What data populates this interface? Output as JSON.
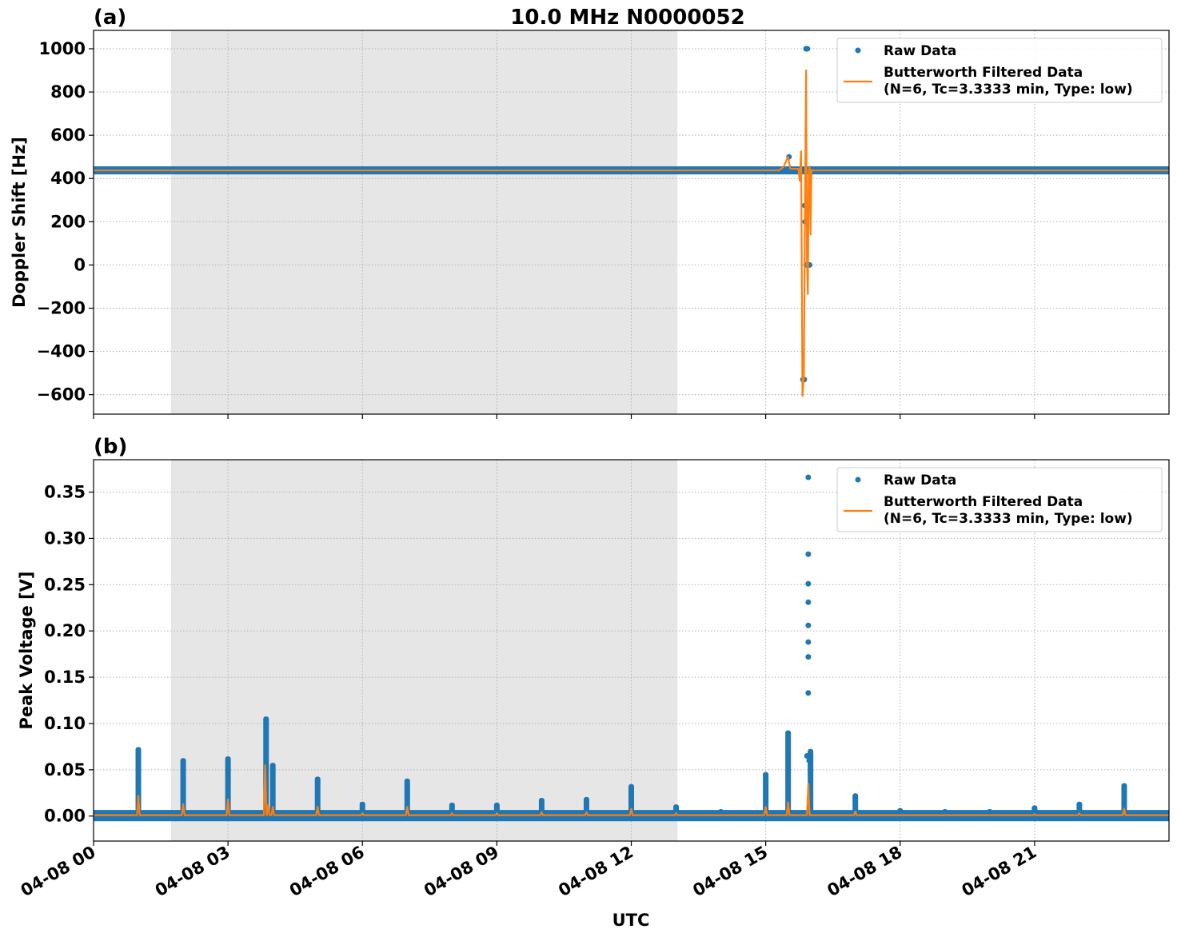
{
  "figure": {
    "title": "10.0 MHz N0000052",
    "xlabel": "UTC",
    "x_tick_labels": [
      "04-08 00",
      "04-08 03",
      "04-08 06",
      "04-08 09",
      "04-08 12",
      "04-08 15",
      "04-08 18",
      "04-08 21"
    ]
  },
  "colors": {
    "raw": "#1f77b4",
    "filtered": "#ff7f0e",
    "night": "#e6e6e6",
    "grid": "#b0b0b0"
  },
  "legend": {
    "raw_label": "Raw Data",
    "filtered_label_line1": "Butterworth Filtered Data",
    "filtered_label_line2": "(N=6, Tc=3.3333 min, Type: low)",
    "placement": "upper right"
  },
  "chart_data": [
    {
      "type": "scatter",
      "panel_label": "(a)",
      "ylabel": "Doppler Shift [Hz]",
      "x_unit": "hours UTC on 04-08",
      "xlim": [
        0,
        24
      ],
      "ylim": [
        -690,
        1085
      ],
      "y_ticks": [
        -600,
        -400,
        -200,
        0,
        200,
        400,
        600,
        800,
        1000
      ],
      "y_tick_labels": [
        "−600",
        "−400",
        "−200",
        "0",
        "200",
        "400",
        "600",
        "800",
        "1000"
      ],
      "shaded_interval": [
        1.73,
        13.03
      ],
      "grid": true,
      "series": [
        {
          "name": "Raw Data",
          "baseline_band": [
            430,
            445
          ],
          "points": [
            [
              15.52,
              500
            ],
            [
              15.55,
              445
            ],
            [
              15.75,
              440
            ],
            [
              15.8,
              445
            ],
            [
              15.83,
              -530
            ],
            [
              15.86,
              -530
            ],
            [
              15.87,
              275
            ],
            [
              15.88,
              200
            ],
            [
              15.9,
              0
            ],
            [
              15.9,
              1000
            ],
            [
              15.93,
              1000
            ],
            [
              15.96,
              0
            ],
            [
              15.98,
              0
            ],
            [
              16.0,
              445
            ],
            [
              16.05,
              440
            ]
          ]
        },
        {
          "name": "Butterworth Filtered Data",
          "points": [
            [
              0,
              437
            ],
            [
              15.3,
              437
            ],
            [
              15.4,
              455
            ],
            [
              15.5,
              500
            ],
            [
              15.55,
              445
            ],
            [
              15.73,
              445
            ],
            [
              15.76,
              390
            ],
            [
              15.79,
              525
            ],
            [
              15.82,
              -605
            ],
            [
              15.85,
              -520
            ],
            [
              15.88,
              330
            ],
            [
              15.9,
              900
            ],
            [
              15.92,
              20
            ],
            [
              15.94,
              -135
            ],
            [
              15.96,
              430
            ],
            [
              15.98,
              455
            ],
            [
              16.0,
              140
            ],
            [
              16.02,
              440
            ],
            [
              16.05,
              437
            ],
            [
              24,
              437
            ]
          ]
        }
      ]
    },
    {
      "type": "scatter",
      "panel_label": "(b)",
      "ylabel": "Peak Voltage [V]",
      "x_unit": "hours UTC on 04-08",
      "xlim": [
        0,
        24
      ],
      "ylim": [
        -0.027,
        0.385
      ],
      "y_ticks": [
        0.0,
        0.05,
        0.1,
        0.15,
        0.2,
        0.25,
        0.3,
        0.35
      ],
      "y_tick_labels": [
        "0.00",
        "0.05",
        "0.10",
        "0.15",
        "0.20",
        "0.25",
        "0.30",
        "0.35"
      ],
      "shaded_interval": [
        1.73,
        13.03
      ],
      "grid": true,
      "series": [
        {
          "name": "Raw Data",
          "baseline_band": [
            -0.003,
            0.004
          ],
          "spikes": [
            [
              1.0,
              0.072
            ],
            [
              2.0,
              0.06
            ],
            [
              3.0,
              0.062
            ],
            [
              3.85,
              0.105
            ],
            [
              4.0,
              0.055
            ],
            [
              5.0,
              0.04
            ],
            [
              6.0,
              0.013
            ],
            [
              7.0,
              0.038
            ],
            [
              8.0,
              0.012
            ],
            [
              9.0,
              0.012
            ],
            [
              10.0,
              0.017
            ],
            [
              11.0,
              0.018
            ],
            [
              12.0,
              0.032
            ],
            [
              13.0,
              0.01
            ],
            [
              14.0,
              0.005
            ],
            [
              15.0,
              0.045
            ],
            [
              15.5,
              0.09
            ],
            [
              16.0,
              0.07
            ],
            [
              17.0,
              0.022
            ],
            [
              18.0,
              0.006
            ],
            [
              19.0,
              0.005
            ],
            [
              20.0,
              0.005
            ],
            [
              21.0,
              0.009
            ],
            [
              22.0,
              0.013
            ],
            [
              23.0,
              0.033
            ]
          ],
          "points": [
            [
              15.95,
              0.366
            ],
            [
              15.95,
              0.283
            ],
            [
              15.95,
              0.251
            ],
            [
              15.95,
              0.231
            ],
            [
              15.95,
              0.206
            ],
            [
              15.95,
              0.188
            ],
            [
              15.95,
              0.172
            ],
            [
              15.95,
              0.133
            ],
            [
              15.92,
              0.065
            ],
            [
              15.97,
              0.06
            ]
          ]
        },
        {
          "name": "Butterworth Filtered Data",
          "baseline": 0.001,
          "spikes": [
            [
              1.0,
              0.022
            ],
            [
              2.0,
              0.013
            ],
            [
              3.0,
              0.018
            ],
            [
              3.83,
              0.055
            ],
            [
              3.9,
              0.012
            ],
            [
              4.0,
              0.01
            ],
            [
              5.0,
              0.01
            ],
            [
              6.0,
              0.003
            ],
            [
              7.0,
              0.01
            ],
            [
              8.0,
              0.003
            ],
            [
              9.0,
              0.003
            ],
            [
              10.0,
              0.004
            ],
            [
              11.0,
              0.004
            ],
            [
              12.0,
              0.008
            ],
            [
              13.0,
              0.003
            ],
            [
              15.0,
              0.01
            ],
            [
              15.5,
              0.015
            ],
            [
              15.95,
              0.035
            ],
            [
              17.0,
              0.005
            ],
            [
              21.0,
              0.002
            ],
            [
              22.0,
              0.003
            ],
            [
              23.0,
              0.008
            ]
          ]
        }
      ]
    }
  ]
}
